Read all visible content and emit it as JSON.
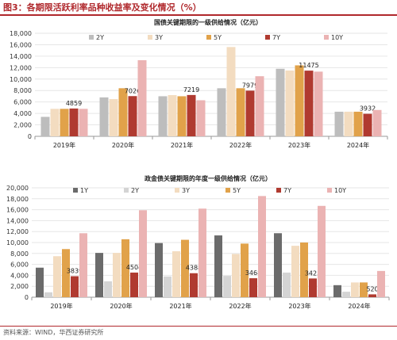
{
  "figure_title": "图3：各期限活跃利率品种收益率及变化情况（%）",
  "source_note": "资料来源：WIND，华西证券研究所",
  "chart_data": [
    {
      "type": "bar",
      "title": "国债关键期限的一级供给情况（亿元）",
      "categories": [
        "2019年",
        "2020年",
        "2021年",
        "2022年",
        "2023年",
        "2024年"
      ],
      "ylim": [
        0,
        18000
      ],
      "yticks": [
        0,
        2000,
        4000,
        6000,
        8000,
        10000,
        12000,
        14000,
        16000,
        18000
      ],
      "legend_position": "top",
      "series": [
        {
          "name": "2Y",
          "color": "#bdbdbd",
          "values": [
            3400,
            6800,
            7000,
            8400,
            11800,
            4300
          ]
        },
        {
          "name": "3Y",
          "color": "#f3dcc0",
          "values": [
            4800,
            6500,
            7200,
            15600,
            11500,
            4300
          ]
        },
        {
          "name": "5Y",
          "color": "#e1a24a",
          "values": [
            4800,
            8400,
            7000,
            8400,
            12400,
            4300
          ]
        },
        {
          "name": "7Y",
          "color": "#b03a30",
          "values": [
            4859,
            7026,
            7219,
            7979,
            11475,
            3932
          ]
        },
        {
          "name": "10Y",
          "color": "#ebb3b3",
          "values": [
            4800,
            13300,
            6300,
            10500,
            11300,
            4600
          ]
        }
      ],
      "data_labels": {
        "series": "7Y",
        "values": [
          "4859",
          "7026",
          "7219",
          "7979",
          "11475",
          "3932"
        ]
      }
    },
    {
      "type": "bar",
      "title": "政金债关键期限的年度一级供给情况（亿元）",
      "categories": [
        "2019年",
        "2020年",
        "2021年",
        "2022年",
        "2023年",
        "2024年"
      ],
      "ylim": [
        0,
        20000
      ],
      "yticks": [
        0,
        2000,
        4000,
        6000,
        8000,
        10000,
        12000,
        14000,
        16000,
        18000,
        20000
      ],
      "legend_position": "top",
      "series": [
        {
          "name": "1Y",
          "color": "#6b6b6b",
          "values": [
            5400,
            8100,
            9900,
            11300,
            11700,
            2200
          ]
        },
        {
          "name": "2Y",
          "color": "#d4d4d4",
          "values": [
            900,
            2900,
            3800,
            3900,
            4500,
            1000
          ]
        },
        {
          "name": "3Y",
          "color": "#f3dcc0",
          "values": [
            7500,
            8100,
            8400,
            7900,
            9400,
            2700
          ]
        },
        {
          "name": "5Y",
          "color": "#e1a24a",
          "values": [
            8800,
            10600,
            10500,
            9800,
            10000,
            2700
          ]
        },
        {
          "name": "7Y",
          "color": "#b03a30",
          "values": [
            3839,
            4504,
            4388,
            3468,
            3425,
            520
          ]
        },
        {
          "name": "10Y",
          "color": "#ebb3b3",
          "values": [
            11700,
            15900,
            16200,
            18500,
            16700,
            4800
          ]
        }
      ],
      "data_labels": {
        "series": "7Y",
        "values": [
          "3839",
          "4504",
          "4388",
          "3468",
          "3425",
          "520"
        ]
      }
    }
  ]
}
